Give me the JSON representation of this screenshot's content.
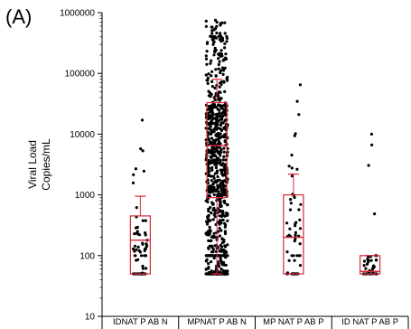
{
  "panel_label": "(A)",
  "chart_data": {
    "type": "box",
    "ylabel_lines": [
      "Viral Load",
      "Copies/mL"
    ],
    "yscale": "log",
    "ylim": [
      10,
      1000000
    ],
    "yticks": [
      10,
      100,
      1000,
      10000,
      100000,
      1000000
    ],
    "ytick_labels": [
      "10",
      "100",
      "1000",
      "10000",
      "100000",
      "1000000"
    ],
    "categories": [
      "IDNAT P AB N",
      "MPNAT P AB N",
      "MP NAT P AB P",
      "ID NAT P AB P"
    ],
    "colors": {
      "box": "#d6283a",
      "points": "#000000",
      "axis": "#000000"
    },
    "boxes": [
      {
        "category": "IDNAT P AB N",
        "whisker_low": 50,
        "q1": 50,
        "median": 180,
        "q3": 450,
        "whisker_high": 950,
        "n_points": 70,
        "point_range": [
          50,
          17000
        ]
      },
      {
        "category": "MPNAT P AB N",
        "whisker_low": 50,
        "q1": 900,
        "median": 6500,
        "q3": 33000,
        "whisker_high": 80000,
        "n_points": 900,
        "point_range": [
          50,
          750000
        ]
      },
      {
        "category": "MP NAT P AB P",
        "whisker_low": 50,
        "q1": 50,
        "median": 200,
        "q3": 1000,
        "whisker_high": 2200,
        "n_points": 65,
        "point_range": [
          50,
          65000
        ]
      },
      {
        "category": "ID NAT P AB P",
        "whisker_low": 50,
        "q1": 50,
        "median": 55,
        "q3": 100,
        "whisker_high": 100,
        "n_points": 40,
        "point_range": [
          50,
          10000
        ]
      }
    ]
  }
}
